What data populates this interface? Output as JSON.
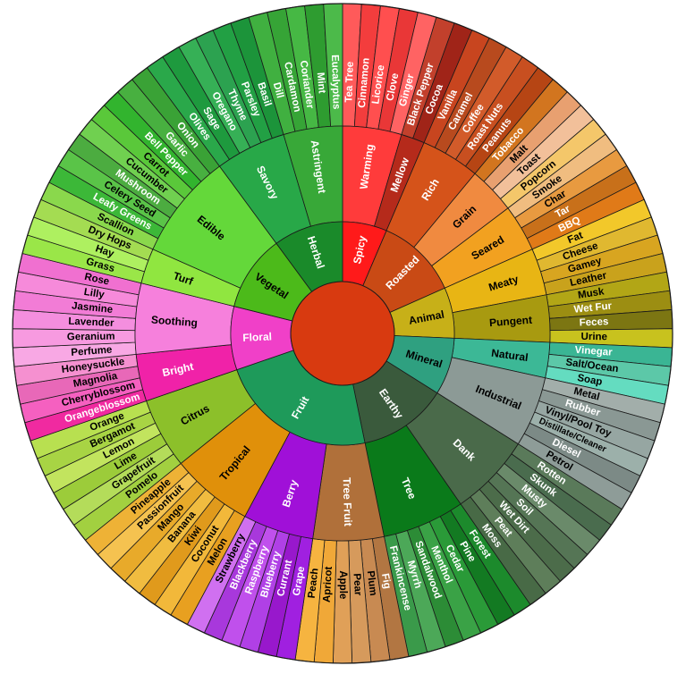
{
  "wheel": {
    "center_color": "#d83a10",
    "categories": [
      {
        "name": "Spicy",
        "color": "#ff1a1a",
        "text": "#ffffff",
        "subcategories": [
          {
            "name": "Warming",
            "color": "#ff3b3b",
            "text": "#ffffff",
            "items": [
              {
                "name": "Tea Tree",
                "color": "#ff5a5a"
              },
              {
                "name": "Cinnamon",
                "color": "#f33d3d"
              },
              {
                "name": "Licorice",
                "color": "#ff4f4f"
              },
              {
                "name": "Clove",
                "color": "#e93737"
              },
              {
                "name": "Ginger",
                "color": "#ff6363"
              }
            ]
          },
          {
            "name": "Mellow",
            "color": "#b52a1b",
            "text": "#ffffff",
            "items": [
              {
                "name": "Black Pepper",
                "color": "#c2402c"
              },
              {
                "name": "Cocoa",
                "color": "#a02418"
              }
            ]
          }
        ]
      },
      {
        "name": "Roasted",
        "color": "#c94a15",
        "text": "#ffffff",
        "subcategories": [
          {
            "name": "Rich",
            "color": "#d5531a",
            "text": "#ffffff",
            "items": [
              {
                "name": "Vanilla",
                "color": "#c8451f"
              },
              {
                "name": "Caramel",
                "color": "#b84a1e"
              },
              {
                "name": "Coffee",
                "color": "#d25b2a"
              },
              {
                "name": "Roast Nuts",
                "color": "#c84f20"
              },
              {
                "name": "Peanuts",
                "color": "#b64514"
              }
            ]
          },
          {
            "name": "Grain",
            "color": "#f08a40",
            "text": "#000000",
            "items": [
              {
                "name": "Tobacco",
                "color": "#d2751f"
              },
              {
                "name": "Malt",
                "color": "#e8a070"
              },
              {
                "name": "Toast",
                "color": "#f2c09a"
              },
              {
                "name": "Popcorn",
                "color": "#f4c76a"
              }
            ]
          },
          {
            "name": "Seared",
            "color": "#f2a120",
            "text": "#000000",
            "items": [
              {
                "name": "Smoke",
                "color": "#f0bd80"
              },
              {
                "name": "Char",
                "color": "#e89a40"
              },
              {
                "name": "Tar",
                "color": "#c8701a"
              },
              {
                "name": "BBQ",
                "color": "#e07a18"
              }
            ]
          }
        ]
      },
      {
        "name": "Animal",
        "color": "#c7b018",
        "text": "#000000",
        "subcategories": [
          {
            "name": "Meaty",
            "color": "#e8b514",
            "text": "#000000",
            "items": [
              {
                "name": "Fat",
                "color": "#f2c82a"
              },
              {
                "name": "Cheese",
                "color": "#e0b830"
              },
              {
                "name": "Gamey",
                "color": "#d8a520"
              },
              {
                "name": "Leather",
                "color": "#c9a21c"
              }
            ]
          },
          {
            "name": "Pungent",
            "color": "#a89a10",
            "text": "#000000",
            "items": [
              {
                "name": "Musk",
                "color": "#b2a616"
              },
              {
                "name": "Wet Fur",
                "color": "#9c8e12"
              },
              {
                "name": "Feces",
                "color": "#7c7612"
              },
              {
                "name": "Urine",
                "color": "#c8c21e"
              }
            ]
          }
        ]
      },
      {
        "name": "Mineral",
        "color": "#2fa080",
        "text": "#000000",
        "subcategories": [
          {
            "name": "Natural",
            "color": "#3cb896",
            "text": "#000000",
            "items": [
              {
                "name": "Vinegar",
                "color": "#3ab594"
              },
              {
                "name": "Salt/Ocean",
                "color": "#5cc8a8"
              },
              {
                "name": "Soap",
                "color": "#64dcc0"
              }
            ]
          },
          {
            "name": "Industrial",
            "color": "#8c9a96",
            "text": "#000000",
            "items": [
              {
                "name": "Metal",
                "color": "#a2aeaa"
              },
              {
                "name": "Rubber",
                "color": "#8a9894"
              },
              {
                "name": "Vinyl/Pool Toy",
                "color": "#96a6a2"
              },
              {
                "name": "Distillate/Cleaner",
                "color": "#9cb0aa"
              },
              {
                "name": "Diesel",
                "color": "#7c8a86"
              },
              {
                "name": "Petrol",
                "color": "#8e9c98"
              }
            ]
          }
        ]
      },
      {
        "name": "Earthy",
        "color": "#3a5a3c",
        "text": "#ffffff",
        "subcategories": [
          {
            "name": "Dank",
            "color": "#4a6a4a",
            "text": "#ffffff",
            "items": [
              {
                "name": "Rotten",
                "color": "#5a7a5a"
              },
              {
                "name": "Skunk",
                "color": "#4a6c4e"
              },
              {
                "name": "Musty",
                "color": "#6a8a6a"
              },
              {
                "name": "Soil",
                "color": "#557555"
              },
              {
                "name": "Wet Dirt",
                "color": "#4c6c4a"
              },
              {
                "name": "Peat",
                "color": "#5e7e5a"
              },
              {
                "name": "Moss",
                "color": "#486a46"
              }
            ]
          },
          {
            "name": "Tree",
            "color": "#0a7a1a",
            "text": "#ffffff",
            "items": [
              {
                "name": "Forest",
                "color": "#1c8a2c"
              },
              {
                "name": "Pine",
                "color": "#137a22"
              },
              {
                "name": "Cedar",
                "color": "#2a9a38"
              },
              {
                "name": "Menthol",
                "color": "#3aa246"
              },
              {
                "name": "Sandalwood",
                "color": "#2c8c36"
              },
              {
                "name": "Myrrh",
                "color": "#4ca858"
              },
              {
                "name": "Frankincense",
                "color": "#3a9a4a"
              }
            ]
          }
        ]
      },
      {
        "name": "Fruit",
        "color": "#1e9a5a",
        "text": "#ffffff",
        "subcategories": [
          {
            "name": "Tree Fruit",
            "color": "#b0703a",
            "text": "#ffffff",
            "items": [
              {
                "name": "Fig",
                "color": "#b27642"
              },
              {
                "name": "Plum",
                "color": "#c88a52"
              },
              {
                "name": "Pear",
                "color": "#d69a5c"
              },
              {
                "name": "Apple",
                "color": "#e0a058"
              },
              {
                "name": "Apricot",
                "color": "#f0a838"
              },
              {
                "name": "Peach",
                "color": "#f6b440"
              }
            ]
          },
          {
            "name": "Berry",
            "color": "#a010d8",
            "text": "#ffffff",
            "items": [
              {
                "name": "Grape",
                "color": "#a020e0"
              },
              {
                "name": "Currant",
                "color": "#9818cc"
              },
              {
                "name": "Blueberry",
                "color": "#b040e6"
              },
              {
                "name": "Raspberry",
                "color": "#c050ec"
              },
              {
                "name": "Blackberry",
                "color": "#a838dc"
              },
              {
                "name": "Strawberry",
                "color": "#d070f0"
              }
            ]
          },
          {
            "name": "Tropical",
            "color": "#e0900a",
            "text": "#000000",
            "items": [
              {
                "name": "Melon",
                "color": "#e8a020"
              },
              {
                "name": "Coconut",
                "color": "#f2b83a"
              },
              {
                "name": "Kiwi",
                "color": "#e09a1c"
              },
              {
                "name": "Banana",
                "color": "#f0bc40"
              },
              {
                "name": "Mango",
                "color": "#e8aa2a"
              },
              {
                "name": "Passionfruit",
                "color": "#f5c250"
              },
              {
                "name": "Pineapple",
                "color": "#eeb236"
              }
            ]
          },
          {
            "name": "Citrus",
            "color": "#8cc02a",
            "text": "#000000",
            "items": [
              {
                "name": "Pomelo",
                "color": "#a2d040"
              },
              {
                "name": "Grapefruit",
                "color": "#b4dc5a"
              },
              {
                "name": "Lime",
                "color": "#9ccc3a"
              },
              {
                "name": "Lemon",
                "color": "#c2e45e"
              },
              {
                "name": "Bergamot",
                "color": "#a8d444"
              },
              {
                "name": "Orange",
                "color": "#b8e050"
              }
            ]
          }
        ]
      },
      {
        "name": "Floral",
        "color": "#f040c8",
        "text": "#ffffff",
        "subcategories": [
          {
            "name": "Bright",
            "color": "#f022a8",
            "text": "#ffffff",
            "items": [
              {
                "name": "Orangeblossom",
                "color": "#f02aa0"
              },
              {
                "name": "Cherryblossom",
                "color": "#f560c0"
              },
              {
                "name": "Magnolia",
                "color": "#e868b8"
              },
              {
                "name": "Honeysuckle",
                "color": "#f590d0"
              }
            ]
          },
          {
            "name": "Soothing",
            "color": "#f680dc",
            "text": "#000000",
            "items": [
              {
                "name": "Perfume",
                "color": "#f8a8e4"
              },
              {
                "name": "Geranium",
                "color": "#f79ae0"
              },
              {
                "name": "Lavender",
                "color": "#f48ede"
              },
              {
                "name": "Jasmine",
                "color": "#f27cd6"
              },
              {
                "name": "Lilly",
                "color": "#f68ada"
              },
              {
                "name": "Rose",
                "color": "#f070d0"
              }
            ]
          }
        ]
      },
      {
        "name": "Vegetal",
        "color": "#4cba1a",
        "text": "#000000",
        "subcategories": [
          {
            "name": "Turf",
            "color": "#90e640",
            "text": "#000000",
            "items": [
              {
                "name": "Grass",
                "color": "#9ae648"
              },
              {
                "name": "Hay",
                "color": "#aef060"
              },
              {
                "name": "Dry Hops",
                "color": "#a4dc52"
              }
            ]
          },
          {
            "name": "Edible",
            "color": "#64d83a",
            "text": "#000000",
            "items": [
              {
                "name": "Scallion",
                "color": "#8ad84c"
              },
              {
                "name": "Leafy Greens",
                "color": "#3cb838"
              },
              {
                "name": "Celery Seed",
                "color": "#5ac448"
              },
              {
                "name": "Mushroom",
                "color": "#4cac40"
              },
              {
                "name": "Cucumber",
                "color": "#70d050"
              },
              {
                "name": "Carrot",
                "color": "#5ac83a"
              },
              {
                "name": "Bell Pepper",
                "color": "#32b42e"
              },
              {
                "name": "Garlic",
                "color": "#48b040"
              },
              {
                "name": "Onion",
                "color": "#3aa236"
              }
            ]
          }
        ]
      },
      {
        "name": "Herbal",
        "color": "#1a8a2a",
        "text": "#ffffff",
        "subcategories": [
          {
            "name": "Savory",
            "color": "#28a848",
            "text": "#ffffff",
            "items": [
              {
                "name": "Olives",
                "color": "#2aa84a"
              },
              {
                "name": "Sage",
                "color": "#1e9a3e"
              },
              {
                "name": "Oregano",
                "color": "#36b056"
              },
              {
                "name": "Thyme",
                "color": "#2ca250"
              },
              {
                "name": "Parsley",
                "color": "#22a044"
              },
              {
                "name": "Basil",
                "color": "#1c943a"
              }
            ]
          },
          {
            "name": "Astringent",
            "color": "#38a838",
            "text": "#ffffff",
            "items": [
              {
                "name": "Dill",
                "color": "#40b040"
              },
              {
                "name": "Cardamon",
                "color": "#36a436"
              },
              {
                "name": "Coriander",
                "color": "#46b844"
              },
              {
                "name": "Mint",
                "color": "#2e9c30"
              },
              {
                "name": "Eucalyptus",
                "color": "#4cba4a"
              }
            ]
          }
        ]
      }
    ]
  }
}
